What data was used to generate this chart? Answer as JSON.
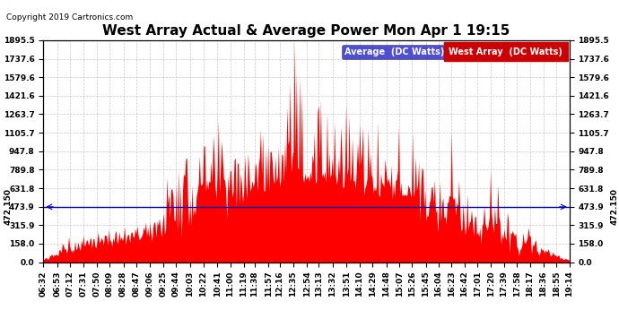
{
  "title": "West Array Actual & Average Power Mon Apr 1 19:15",
  "copyright": "Copyright 2019 Cartronics.com",
  "legend_avg_label": "Average  (DC Watts)",
  "legend_west_label": "West Array  (DC Watts)",
  "avg_value": 472.15,
  "ylim": [
    0.0,
    1895.5
  ],
  "yticks": [
    0.0,
    158.0,
    315.9,
    473.9,
    631.8,
    789.8,
    947.8,
    1105.7,
    1263.7,
    1421.6,
    1579.6,
    1737.6,
    1895.5
  ],
  "background_color": "#ffffff",
  "fill_color": "#ff0000",
  "avg_line_color": "#0000bb",
  "grid_color": "#bbbbbb",
  "title_fontsize": 11,
  "tick_fontsize": 6.5,
  "legend_fontsize": 7,
  "copyright_fontsize": 6.5,
  "avg_label_fontsize": 6.5,
  "x_tick_times": [
    6.533,
    6.883,
    7.183,
    7.5,
    7.833,
    8.133,
    8.467,
    8.783,
    9.1,
    9.433,
    9.733,
    10.067,
    10.4,
    10.733,
    11.05,
    11.367,
    11.633,
    11.967,
    12.233,
    12.567,
    12.9,
    13.183,
    13.517,
    13.85,
    14.167,
    14.483,
    14.817,
    15.133,
    15.433,
    15.767,
    16.067,
    16.383,
    16.7,
    17.017,
    17.333,
    17.65,
    17.967,
    18.283,
    18.6,
    18.917,
    19.233
  ],
  "x_tick_labels": [
    "06:32",
    "06:53",
    "07:12",
    "07:31",
    "07:50",
    "08:09",
    "08:28",
    "08:47",
    "09:06",
    "09:25",
    "09:44",
    "10:03",
    "10:22",
    "10:41",
    "11:00",
    "11:19",
    "11:38",
    "11:57",
    "12:16",
    "12:35",
    "12:54",
    "13:13",
    "13:32",
    "13:51",
    "14:10",
    "14:29",
    "14:48",
    "15:07",
    "15:26",
    "15:45",
    "16:04",
    "16:23",
    "16:42",
    "17:01",
    "17:20",
    "17:39",
    "17:58",
    "18:17",
    "18:36",
    "18:55",
    "19:14"
  ],
  "t_start": 6.533,
  "t_end": 19.233
}
